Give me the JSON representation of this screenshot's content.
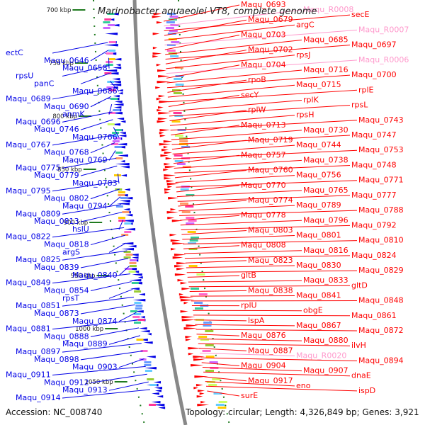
{
  "title": "Marinobacter aquaeolei VT8, complete genome",
  "footer": {
    "accession": "Accession: NC_008740",
    "topology": "Topology: circular; Length: 4,326,849 bp; Genes: 3,921"
  },
  "colors": {
    "plus": "#ff0000",
    "minus": "#0000e6",
    "rna": "#ff99cc",
    "backbone": "#888888",
    "tick": "#1f7a1f"
  },
  "ticks": [
    "700 kbp",
    "750 kbp",
    "800 kbp",
    "850 kbp",
    "900 kbp",
    "950 kbp",
    "1000 kbp",
    "1050 kbp"
  ],
  "left_labels": [
    "ectC",
    "Maqu_0646",
    "Maqu_0658",
    "rpsU",
    "panC",
    "Maqu_0686",
    "Maqu_0689",
    "Maqu_0690",
    "anmK",
    "Maqu_0696",
    "Maqu_0746",
    "Maqu_0766",
    "Maqu_0767",
    "Maqu_0768",
    "Maqu_0769",
    "Maqu_0775",
    "Maqu_0779",
    "Maqu_0783",
    "Maqu_0795",
    "Maqu_0802",
    "Maqu_0794",
    "Maqu_0809",
    "Maqu_0813",
    "hslU",
    "Maqu_0822",
    "Maqu_0818",
    "argS",
    "Maqu_0825",
    "Maqu_0839",
    "Maqu_0840",
    "Maqu_0849",
    "Maqu_0854",
    "rpsT",
    "Maqu_0851",
    "Maqu_0873",
    "Maqu_0874",
    "Maqu_0881",
    "Maqu_0888",
    "Maqu_0889",
    "Maqu_0897",
    "Maqu_0898",
    "Maqu_0903",
    "Maqu_0911",
    "Maqu_0912",
    "Maqu_0913",
    "Maqu_0914"
  ],
  "right_labels": [
    "Maqu_0693",
    "Maqu_R0008",
    "secE",
    "Maqu_0679",
    "argC",
    "Maqu_R0007",
    "Maqu_0703",
    "Maqu_0685",
    "Maqu_0697",
    "Maqu_0702",
    "rpsJ",
    "Maqu_R0006",
    "Maqu_0704",
    "Maqu_0716",
    "Maqu_0700",
    "rpoB",
    "Maqu_0715",
    "rplE",
    "secY",
    "rplK",
    "rpsL",
    "rplW",
    "rpsH",
    "Maqu_0743",
    "Maqu_0713",
    "Maqu_0730",
    "Maqu_0747",
    "Maqu_0719",
    "Maqu_0744",
    "Maqu_0753",
    "Maqu_0757",
    "Maqu_0738",
    "Maqu_0748",
    "Maqu_0760",
    "Maqu_0756",
    "Maqu_0771",
    "Maqu_0770",
    "Maqu_0765",
    "Maqu_0777",
    "Maqu_0774",
    "Maqu_0789",
    "Maqu_0788",
    "Maqu_0778",
    "Maqu_0796",
    "Maqu_0792",
    "Maqu_0803",
    "Maqu_0801",
    "Maqu_0810",
    "Maqu_0808",
    "Maqu_0816",
    "Maqu_0824",
    "Maqu_0823",
    "Maqu_0830",
    "Maqu_0829",
    "gltB",
    "Maqu_0833",
    "gltD",
    "Maqu_0838",
    "Maqu_0841",
    "Maqu_0848",
    "rplU",
    "obgE",
    "Maqu_0861",
    "lspA",
    "Maqu_0867",
    "Maqu_0872",
    "Maqu_0876",
    "Maqu_0880",
    "ilvH",
    "Maqu_0887",
    "Maqu_R0020",
    "Maqu_0894",
    "Maqu_0904",
    "Maqu_0907",
    "dnaE",
    "Maqu_0917",
    "eno",
    "ispD",
    "surE"
  ]
}
